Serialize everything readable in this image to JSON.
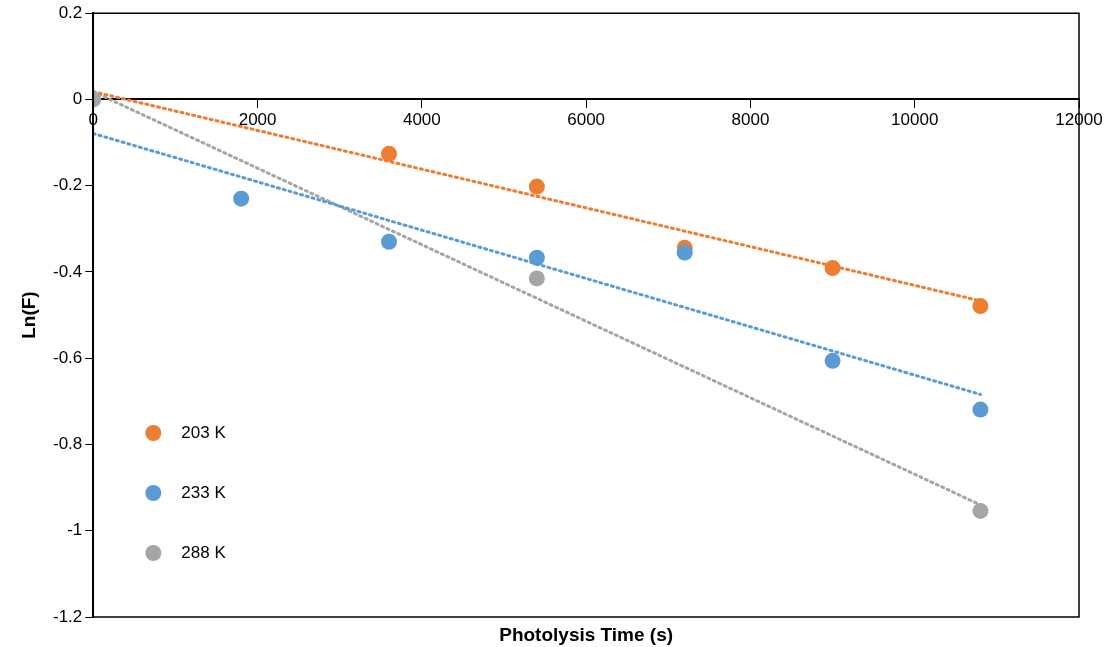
{
  "chart_data": {
    "type": "scatter",
    "xlabel": "Photolysis Time (s)",
    "ylabel": "Ln(F)",
    "xlim": [
      0,
      12000
    ],
    "xticks": [
      0,
      2000,
      4000,
      6000,
      8000,
      10000,
      12000
    ],
    "ylim": [
      -1.2,
      0.2
    ],
    "yticks": [
      -1.2,
      -1,
      -0.8,
      -0.6,
      -0.4,
      -0.2,
      0,
      0.2
    ],
    "grid": false,
    "legend": "bottom left",
    "marker": "circle",
    "series": [
      {
        "name": "203 K",
        "color": "#ed7d31",
        "x": [
          3600,
          5400,
          7200,
          9000,
          10800
        ],
        "values": [
          -0.126,
          -0.202,
          -0.344,
          -0.391,
          -0.479
        ]
      },
      {
        "name": "233 K",
        "color": "#5b9bd5",
        "x": [
          1800,
          3600,
          5400,
          7200,
          9000,
          10800
        ],
        "values": [
          -0.23,
          -0.33,
          -0.367,
          -0.355,
          -0.606,
          -0.719
        ]
      },
      {
        "name": "288 K",
        "color": "#a5a5a5",
        "x": [
          0,
          5400,
          10800
        ],
        "values": [
          0,
          -0.415,
          -0.954
        ]
      },
      {
        "type": "line",
        "color": "#ed7d31",
        "x": [
          0,
          10800
        ],
        "values": [
          0.018,
          -0.467
        ],
        "line_style": "dotted",
        "marker": "none"
      },
      {
        "type": "line",
        "color": "#5b9bd5",
        "x": [
          0,
          10800
        ],
        "values": [
          -0.079,
          -0.684
        ],
        "line_style": "dotted",
        "marker": "none"
      },
      {
        "type": "line",
        "color": "#a5a5a5",
        "x": [
          0,
          10800
        ],
        "values": [
          0.018,
          -0.94
        ],
        "line_style": "dotted",
        "marker": "none"
      }
    ]
  }
}
